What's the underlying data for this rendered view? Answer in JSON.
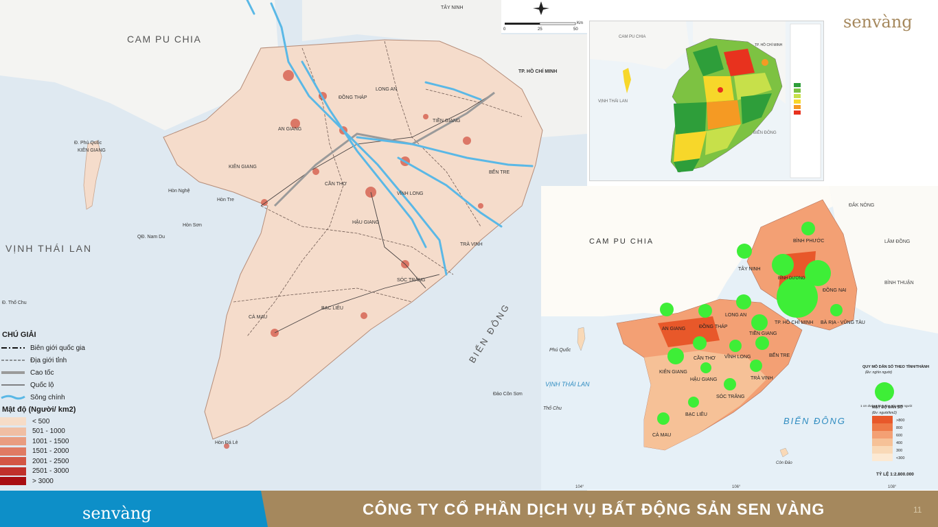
{
  "left_map": {
    "labels": {
      "cambodia": "CAM PU CHIA",
      "gulf": "VỊNH THÁI LAN",
      "east_sea": "BIỂN ĐÔNG",
      "tay_ninh": "TÂY NINH",
      "hcm": "TP. HỒ CHÍ MINH",
      "long_an": "LONG AN",
      "dong_thap": "ĐỒNG THÁP",
      "tien_giang": "TIỀN GIANG",
      "an_giang": "AN GIANG",
      "kien_giang": "KIÊN GIANG",
      "ben_tre": "BẾN TRE",
      "can_tho": "CẦN THƠ",
      "vinh_long": "VĨNH LONG",
      "hau_giang": "HẬU GIANG",
      "tra_vinh": "TRÀ VINH",
      "soc_trang": "SÓC TRĂNG",
      "bac_lieu": "BẠC LIÊU",
      "ca_mau": "CÀ MAU",
      "phu_quoc": "Đ. Phú Quốc",
      "kien_giang_island": "KIÊN GIANG",
      "hon_nghe": "Hòn Nghệ",
      "hon_tre": "Hòn Tre",
      "hon_son": "Hòn Sơn",
      "nam_du": "QĐ. Nam Du",
      "tho_chu": "Đ. Thổ Chu",
      "con_son": "Đảo Côn Sơn",
      "hon_da_le": "Hòn Đá Lẻ",
      "scale_0": "0",
      "scale_25": "25",
      "scale_50": "50",
      "scale_unit": "Km"
    },
    "legend": {
      "title": "CHÚ GIẢI",
      "items": [
        {
          "label": "Biên giới quốc gia"
        },
        {
          "label": "Địa giới tỉnh"
        },
        {
          "label": "Cao tốc"
        },
        {
          "label": "Quốc lộ"
        },
        {
          "label": "Sông chính"
        }
      ],
      "density_title": "Mật độ (Người/ km2)",
      "density_classes": [
        {
          "label": "< 500",
          "color": "#f6dcc7"
        },
        {
          "label": "501 - 1000",
          "color": "#f0bea3"
        },
        {
          "label": "1001 - 1500",
          "color": "#e99c80"
        },
        {
          "label": "1501 - 2000",
          "color": "#e07a63"
        },
        {
          "label": "2001 - 2500",
          "color": "#d35645"
        },
        {
          "label": "2501 - 3000",
          "color": "#c0302b"
        },
        {
          "label": "> 3000",
          "color": "#a80d12"
        }
      ]
    },
    "colors": {
      "sea": "#dfe9f1",
      "land": "#f5dccb",
      "river": "#5ab8e6",
      "foreign_land": "#f4f4f2"
    }
  },
  "top_right_map": {
    "labels": {
      "cambodia": "CAM PU CHIA",
      "gulf": "VỊNH THÁI LAN",
      "east_sea": "BIỂN ĐÔNG",
      "hcm": "TP. HỒ CHÍ MINH"
    },
    "colors": [
      "#2e9e3a",
      "#7dc242",
      "#c7e04a",
      "#f7d72a",
      "#f59a23",
      "#e8321e"
    ]
  },
  "bottom_right_map": {
    "labels": {
      "cambodia": "CAM PU CHIA",
      "dak_nong": "ĐẮK NÔNG",
      "lam_dong": "LÂM ĐỒNG",
      "binh_thuan": "BÌNH THUẬN",
      "binh_phuoc": "BÌNH PHƯỚC",
      "tay_ninh": "TÂY NINH",
      "binh_duong": "BÌNH DƯƠNG",
      "dong_nai": "ĐỒNG NAI",
      "hcm": "TP. HỒ CHÍ MINH",
      "ba_ria": "BÀ RỊA - VŨNG TÀU",
      "long_an": "LONG AN",
      "an_giang": "AN GIANG",
      "dong_thap": "ĐỒNG THÁP",
      "tien_giang": "TIỀN GIANG",
      "can_tho": "CẦN THƠ",
      "vinh_long": "VĨNH LONG",
      "ben_tre": "BẾN TRE",
      "kien_giang": "KIÊN GIANG",
      "hau_giang": "HẬU GIANG",
      "tra_vinh": "TRÀ VINH",
      "soc_trang": "SÓC TRĂNG",
      "bac_lieu": "BẠC LIÊU",
      "ca_mau": "CÀ MAU",
      "phu_quoc": "Phú Quốc",
      "gulf": "VỊNH THÁI LAN",
      "tho_chu": "Thổ Chu",
      "east_sea": "BIỂN ĐÔNG",
      "con_dao": "Côn Đảo",
      "lon_104": "104°",
      "lon_106": "106°",
      "lon_108": "108°"
    },
    "legend": {
      "size_title": "QUY MÔ DÂN SỐ THEO TỈNH/THÀNH",
      "size_unit": "(Đv: nghìn người)",
      "size_note": "1 cm đường kính ứng với 4000 người",
      "density_title": "MẬT ĐỘ DÂN SỐ",
      "density_unit": "(Đv: người/km2)",
      "classes": [
        {
          "label": ">800",
          "color": "#e8582a"
        },
        {
          "label": "800",
          "color": "#ee7a48"
        },
        {
          "label": "600",
          "color": "#f3a074"
        },
        {
          "label": "400",
          "color": "#f6c197"
        },
        {
          "label": "300",
          "color": "#f9d9b7"
        },
        {
          "label": "<300",
          "color": "#fce9d3"
        }
      ],
      "scale": "TỶ LỆ 1:2.800.000"
    }
  },
  "brand": {
    "logo_text": "senvàng",
    "color": "#a5885d"
  },
  "footer": {
    "company": "CÔNG TY CỔ PHẦN DỊCH VỤ BẤT ĐỘNG SẢN SEN VÀNG",
    "page_number": "11",
    "left_color": "#0d8fc8",
    "right_color": "#a5885d"
  }
}
